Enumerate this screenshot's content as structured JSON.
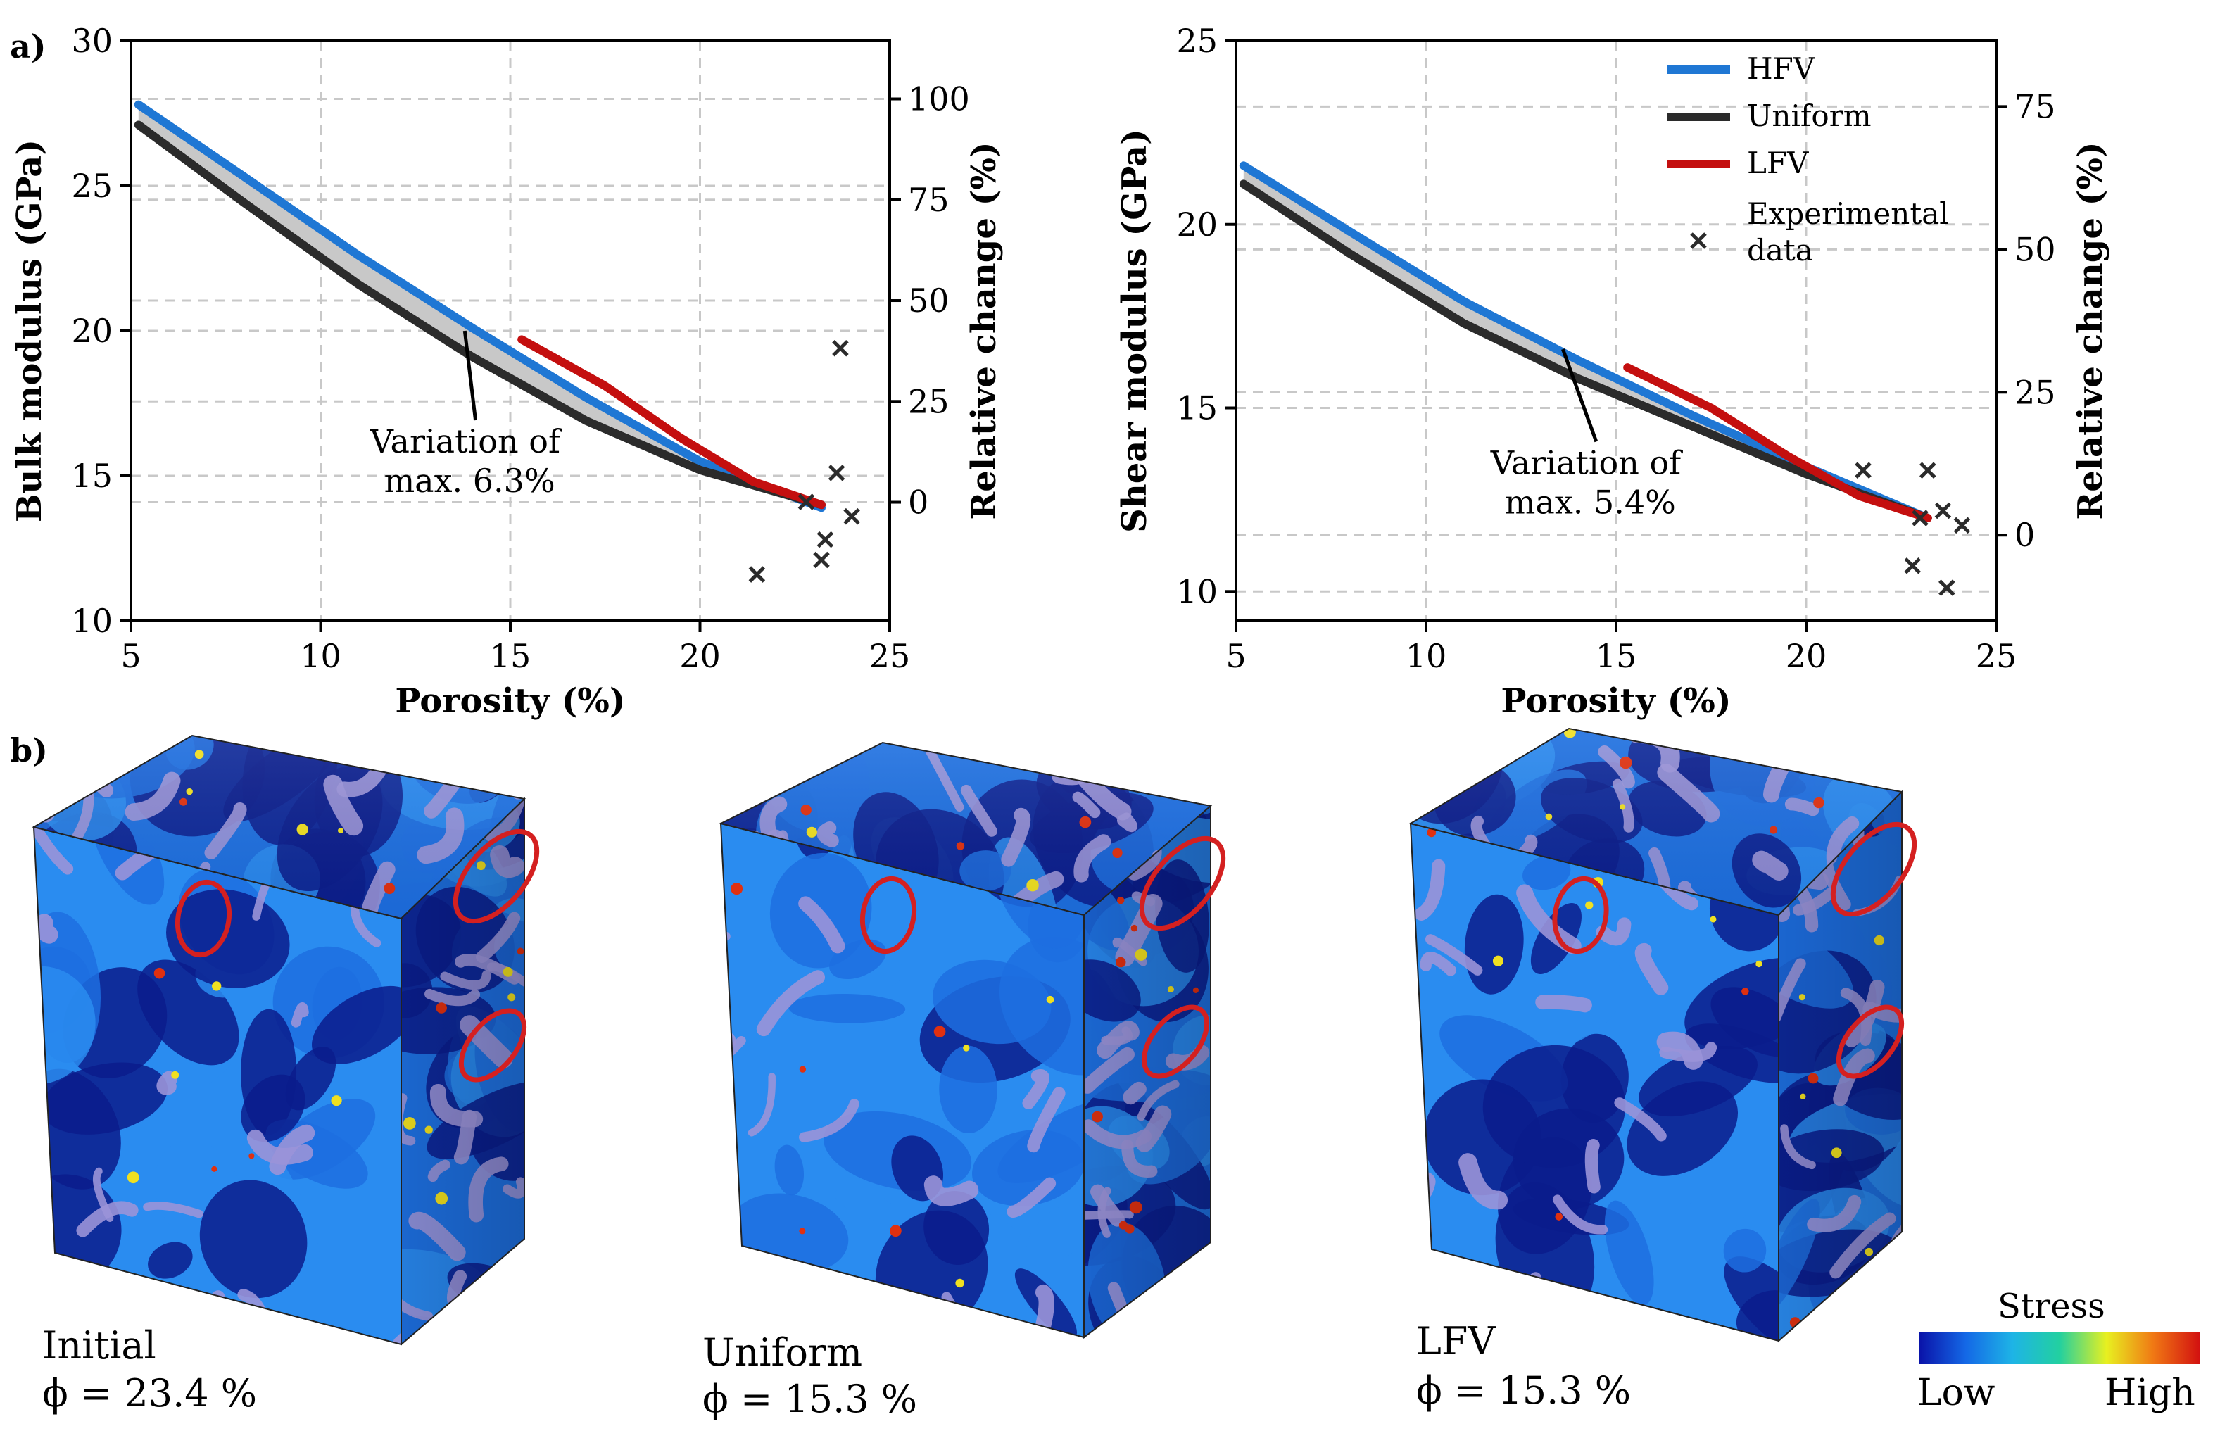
{
  "panel_labels": {
    "a": "a)",
    "b": "b)"
  },
  "colors": {
    "hfv": "#1f77d4",
    "uniform": "#2b2b2b",
    "lfv": "#c40f0f",
    "band": "#c8c8c8",
    "grid": "#c8c8c8",
    "ellipse": "#d42020",
    "cube_face_deep": "#0a1c8c",
    "cube_face_mid": "#1d6fe0",
    "cube_face_light": "#2a8cf0",
    "grain": "#9a93d8"
  },
  "chart_data": [
    {
      "type": "line",
      "id": "bulk",
      "xlabel": "Porosity (%)",
      "ylabel": "Bulk modulus (GPa)",
      "y2label": "Relative change (%)",
      "xlim": [
        5,
        25
      ],
      "ylim": [
        10,
        30
      ],
      "y2lim": [
        -29.4,
        114.4
      ],
      "xticks": [
        5,
        10,
        15,
        20,
        25
      ],
      "yticks": [
        10,
        15,
        20,
        25,
        30
      ],
      "y2ticks": [
        0,
        25,
        50,
        75,
        100
      ],
      "grid": true,
      "band_between": [
        "HFV",
        "Uniform"
      ],
      "annotation": {
        "lines": [
          "Variation of",
          "max. 6.3%"
        ],
        "arrow_to": [
          13.8,
          20.0
        ],
        "text_at": [
          11.3,
          15.8
        ]
      },
      "series": [
        {
          "name": "HFV",
          "color_key": "hfv",
          "x": [
            5.2,
            8,
            11,
            14,
            17,
            20,
            23.2
          ],
          "y": [
            27.8,
            25.3,
            22.6,
            20.1,
            17.7,
            15.5,
            13.9
          ]
        },
        {
          "name": "Uniform",
          "color_key": "uniform",
          "x": [
            5.2,
            8,
            11,
            14,
            17,
            20,
            23.2
          ],
          "y": [
            27.1,
            24.4,
            21.6,
            19.1,
            16.9,
            15.2,
            14.0
          ]
        },
        {
          "name": "LFV",
          "color_key": "lfv",
          "x": [
            15.3,
            17.5,
            19.5,
            21.4,
            23.2
          ],
          "y": [
            19.7,
            18.1,
            16.3,
            14.8,
            14.0
          ]
        }
      ],
      "scatter": {
        "name": "Experimental data",
        "x": [
          21.5,
          22.8,
          23.2,
          23.3,
          23.6,
          23.7,
          24.0
        ],
        "y": [
          11.6,
          14.1,
          12.1,
          12.8,
          15.1,
          19.4,
          13.6
        ]
      }
    },
    {
      "type": "line",
      "id": "shear",
      "xlabel": "Porosity (%)",
      "ylabel": "Shear modulus (GPa)",
      "y2label": "Relative change (%)",
      "xlim": [
        5,
        25
      ],
      "ylim": [
        9.2,
        25
      ],
      "y2lim": [
        -15,
        86.5
      ],
      "xticks": [
        5,
        10,
        15,
        20,
        25
      ],
      "yticks": [
        10,
        15,
        20,
        25
      ],
      "y2ticks": [
        0,
        25,
        50,
        75
      ],
      "grid": true,
      "band_between": [
        "HFV",
        "Uniform"
      ],
      "annotation": {
        "lines": [
          "Variation of",
          "max. 5.4%"
        ],
        "arrow_to": [
          13.6,
          16.6
        ],
        "text_at": [
          11.7,
          13.2
        ]
      },
      "series": [
        {
          "name": "HFV",
          "color_key": "hfv",
          "x": [
            5.2,
            8,
            11,
            14,
            17,
            20,
            23.2
          ],
          "y": [
            21.6,
            19.8,
            17.9,
            16.3,
            14.8,
            13.4,
            12.0
          ]
        },
        {
          "name": "Uniform",
          "color_key": "uniform",
          "x": [
            5.2,
            8,
            11,
            14,
            17,
            20,
            23.2
          ],
          "y": [
            21.1,
            19.2,
            17.3,
            15.8,
            14.5,
            13.2,
            12.0
          ]
        },
        {
          "name": "LFV",
          "color_key": "lfv",
          "x": [
            15.3,
            17.5,
            19.5,
            21.4,
            23.2
          ],
          "y": [
            16.1,
            15.0,
            13.7,
            12.6,
            12.0
          ]
        }
      ],
      "scatter": {
        "name": "Experimental data",
        "x": [
          21.5,
          22.8,
          23.0,
          23.2,
          23.6,
          23.7,
          24.1
        ],
        "y": [
          13.3,
          10.7,
          12.0,
          13.3,
          12.2,
          10.1,
          11.8
        ]
      }
    }
  ],
  "legend": {
    "items": [
      {
        "label": "HFV",
        "color_key": "hfv",
        "kind": "line"
      },
      {
        "label": "Uniform",
        "color_key": "uniform",
        "kind": "line"
      },
      {
        "label": "LFV",
        "color_key": "lfv",
        "kind": "line"
      },
      {
        "label": "Experimental",
        "label2": "data",
        "color_key": "uniform",
        "kind": "marker"
      }
    ]
  },
  "cubes": [
    {
      "title": "Initial",
      "phi_label": "ϕ = 23.4 %",
      "seed": 11
    },
    {
      "title": "Uniform",
      "phi_label": "ϕ = 15.3 %",
      "seed": 29
    },
    {
      "title": "LFV",
      "phi_label": "ϕ = 15.3 %",
      "seed": 47
    }
  ],
  "colorbar": {
    "title": "Stress",
    "low": "Low",
    "high": "High",
    "stops": [
      "#0a12a8",
      "#1468e6",
      "#1eb4e6",
      "#22d0a0",
      "#e8f020",
      "#f07814",
      "#d21010"
    ]
  }
}
